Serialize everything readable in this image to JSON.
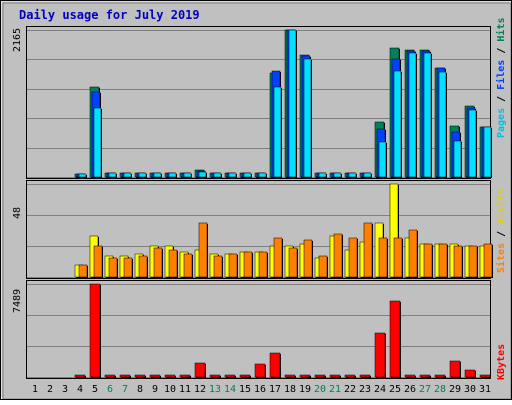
{
  "chart_data": {
    "type": "bar",
    "title": "Daily usage for July 2019",
    "categories": [
      "1",
      "2",
      "3",
      "4",
      "5",
      "6",
      "7",
      "8",
      "9",
      "10",
      "11",
      "12",
      "13",
      "14",
      "15",
      "16",
      "17",
      "18",
      "19",
      "20",
      "21",
      "22",
      "23",
      "24",
      "25",
      "26",
      "27",
      "28",
      "29",
      "30",
      "31"
    ],
    "weekend_days": [
      "6",
      "7",
      "13",
      "14",
      "20",
      "21",
      "27",
      "28"
    ],
    "grid": true,
    "panels": [
      {
        "name": "requests",
        "ymax_label": "2165",
        "ylim": [
          0,
          2165
        ],
        "right_label": [
          "Pages",
          "/",
          "Files",
          "/",
          "Hits"
        ],
        "series": [
          {
            "name": "Hits",
            "values": [
              0,
              0,
              0,
              50,
              1320,
              60,
              60,
              60,
              60,
              60,
              60,
              110,
              60,
              60,
              60,
              60,
              1530,
              2165,
              1800,
              60,
              60,
              60,
              60,
              810,
              1900,
              1870,
              1870,
              1610,
              750,
              1040,
              730
            ]
          },
          {
            "name": "Files",
            "values": [
              0,
              0,
              0,
              50,
              1250,
              60,
              60,
              60,
              60,
              60,
              60,
              90,
              60,
              60,
              60,
              60,
              1560,
              2165,
              1780,
              60,
              60,
              60,
              60,
              710,
              1740,
              1850,
              1850,
              1600,
              660,
              1010,
              730
            ]
          },
          {
            "name": "Pages",
            "values": [
              0,
              0,
              0,
              50,
              1010,
              60,
              60,
              60,
              60,
              60,
              60,
              80,
              60,
              60,
              60,
              60,
              1330,
              2165,
              1740,
              60,
              60,
              60,
              60,
              510,
              1560,
              1820,
              1820,
              1550,
              530,
              990,
              730
            ]
          }
        ]
      },
      {
        "name": "visits",
        "ymax_label": "48",
        "ylim": [
          0,
          48
        ],
        "right_label": [
          "Sites",
          "/",
          "Visits"
        ],
        "series": [
          {
            "name": "Visits",
            "values": [
              0,
              0,
              0,
              6,
              21,
              11,
              11,
              12,
              16,
              16,
              13,
              14,
              12,
              12,
              13,
              13,
              16,
              16,
              17,
              10,
              21,
              14,
              18,
              28,
              48,
              20,
              17,
              17,
              17,
              16,
              16
            ]
          },
          {
            "name": "Sites",
            "values": [
              0,
              0,
              0,
              6,
              16,
              10,
              10,
              11,
              15,
              14,
              12,
              28,
              11,
              12,
              13,
              13,
              20,
              15,
              19,
              11,
              22,
              20,
              28,
              20,
              20,
              24,
              17,
              17,
              16,
              16,
              17
            ]
          }
        ]
      },
      {
        "name": "kbytes",
        "ymax_label": "7489",
        "ylim": [
          0,
          7489
        ],
        "right_label": [
          "KBytes"
        ],
        "series": [
          {
            "name": "KBytes",
            "values": [
              0,
              0,
              0,
              80,
              7489,
              80,
              80,
              80,
              80,
              80,
              80,
              1100,
              80,
              80,
              80,
              1050,
              1950,
              200,
              200,
              80,
              80,
              80,
              160,
              3530,
              6100,
              120,
              120,
              120,
              1300,
              550,
              200
            ]
          }
        ]
      }
    ],
    "colors": {
      "hits": "#00805C",
      "files": "#0040FF",
      "pages": "#00E0FF",
      "visits": "#FFFF00",
      "sites": "#FF8000",
      "kbytes": "#FF0000",
      "weekend_label": "#00805C",
      "weekday_label": "#000000",
      "title": "#0000C0",
      "panel_bg": "#C0C0C0"
    }
  }
}
